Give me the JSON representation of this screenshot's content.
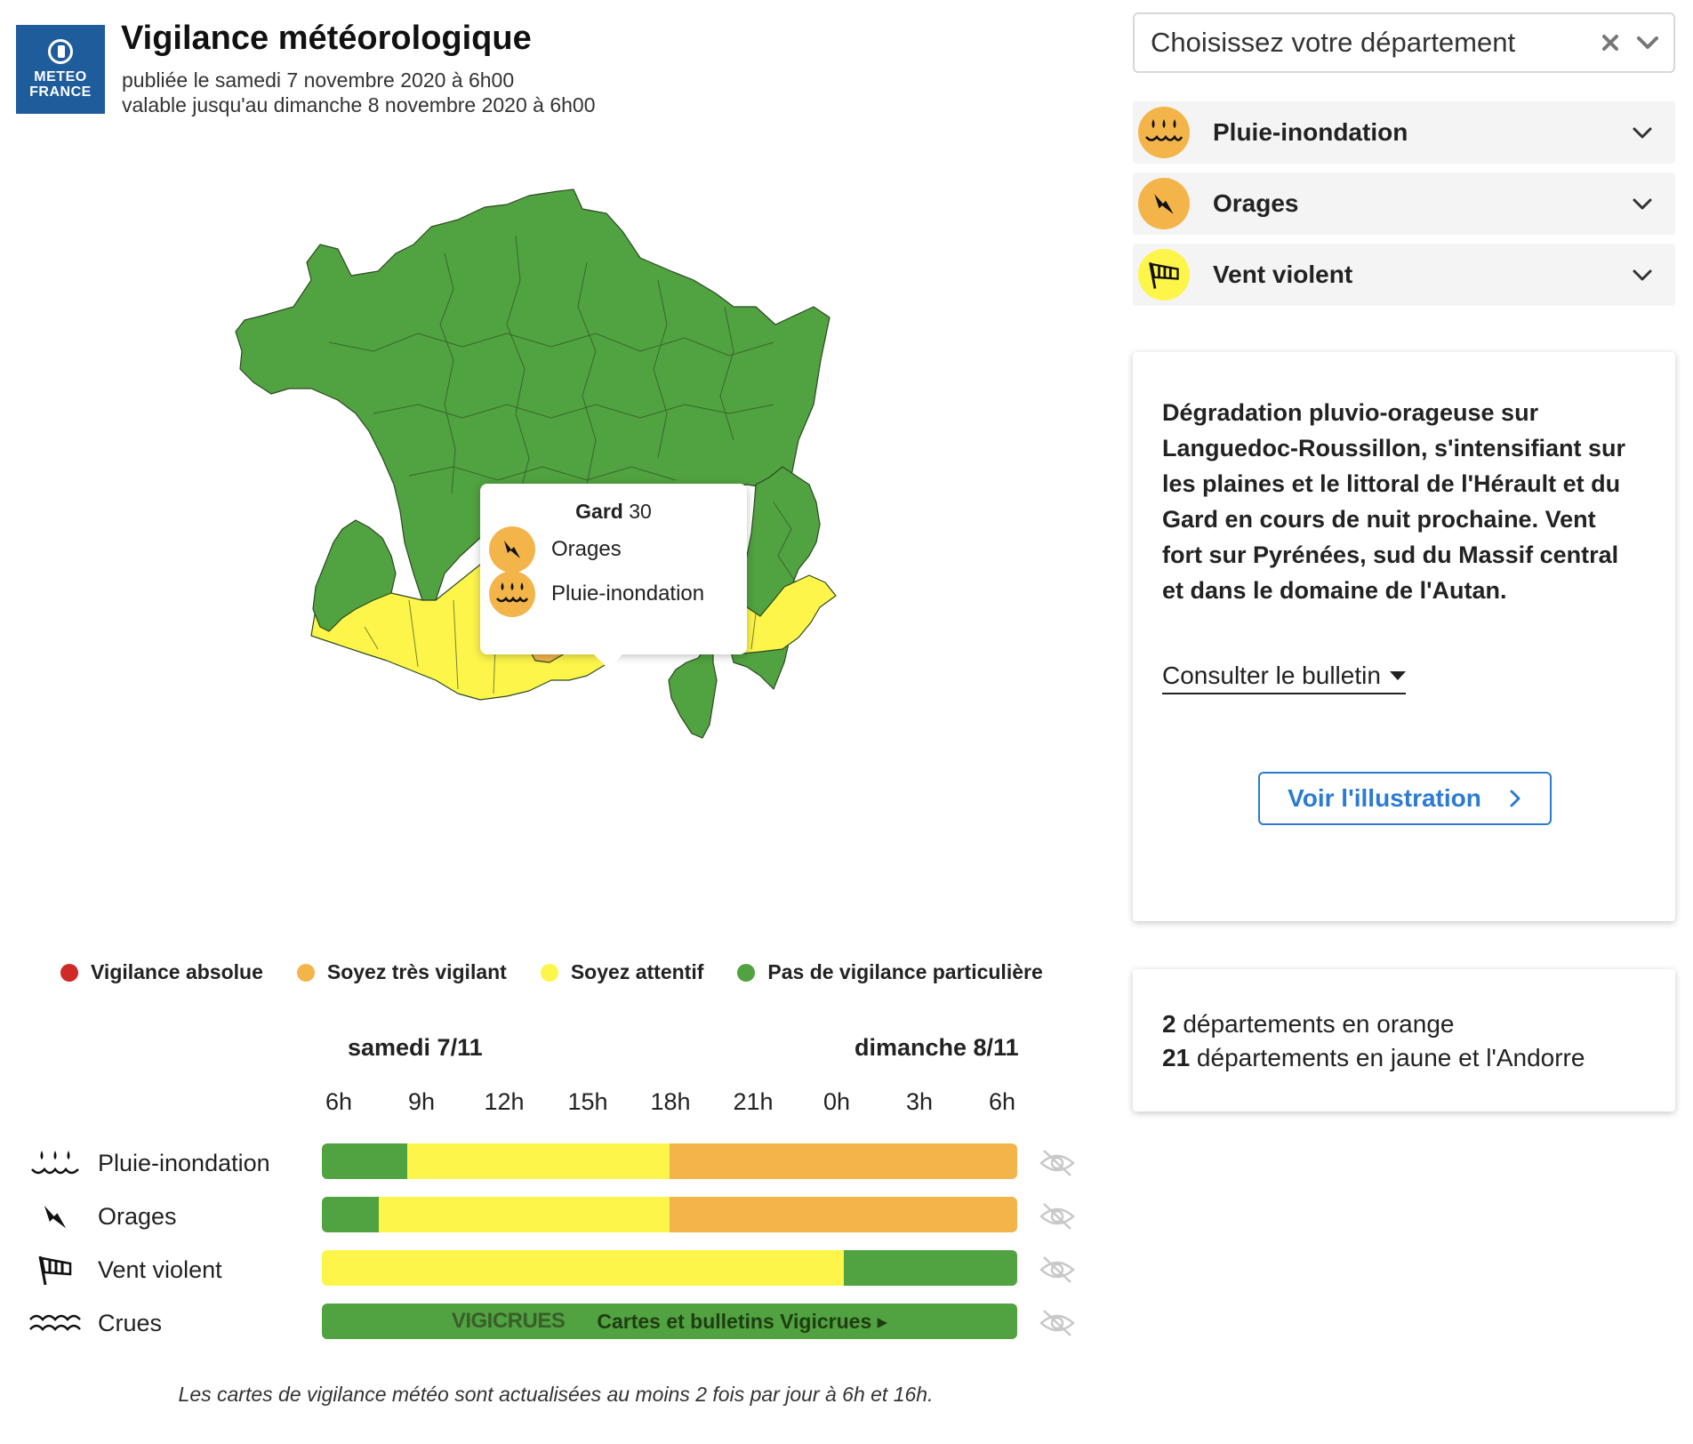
{
  "header": {
    "logo_line1": "METEO",
    "logo_line2": "FRANCE",
    "title": "Vigilance météorologique",
    "published": "publiée le samedi 7 novembre 2020 à 6h00",
    "valid_until": "valable jusqu'au dimanche 8 novembre 2020 à 6h00"
  },
  "tooltip": {
    "dept_name": "Gard",
    "dept_number": "30",
    "risks": [
      "Orages",
      "Pluie-inondation"
    ]
  },
  "legend": [
    {
      "label": "Vigilance absolue",
      "color": "#cf2a27"
    },
    {
      "label": "Soyez très vigilant",
      "color": "#f3b54a"
    },
    {
      "label": "Soyez attentif",
      "color": "#fdf54a"
    },
    {
      "label": "Pas de vigilance particulière",
      "color": "#51a240"
    }
  ],
  "timeline": {
    "day1": "samedi 7/11",
    "day2": "dimanche 8/11",
    "hours": [
      "6h",
      "9h",
      "12h",
      "15h",
      "18h",
      "21h",
      "0h",
      "3h",
      "6h"
    ],
    "rows": [
      {
        "label": "Pluie-inondation",
        "segments": [
          {
            "level": "green",
            "from": 0,
            "to": 0.123
          },
          {
            "level": "yellow",
            "from": 0.123,
            "to": 0.5
          },
          {
            "level": "orange",
            "from": 0.5,
            "to": 1
          }
        ]
      },
      {
        "label": "Orages",
        "segments": [
          {
            "level": "green",
            "from": 0,
            "to": 0.082
          },
          {
            "level": "yellow",
            "from": 0.082,
            "to": 0.5
          },
          {
            "level": "orange",
            "from": 0.5,
            "to": 1
          }
        ]
      },
      {
        "label": "Vent violent",
        "segments": [
          {
            "level": "yellow",
            "from": 0,
            "to": 0.75
          },
          {
            "level": "green",
            "from": 0.75,
            "to": 1
          }
        ]
      },
      {
        "label": "Crues",
        "segments": [
          {
            "level": "green",
            "from": 0,
            "to": 1
          }
        ]
      }
    ],
    "vigicrues_logo": "VIGICRUES",
    "vigicrues_link": "Cartes et bulletins Vigicrues ▸"
  },
  "footnote": "Les cartes de vigilance météo sont actualisées au moins 2 fois par jour à 6h et 16h.",
  "right": {
    "dept_placeholder": "Choisissez votre département",
    "risk_panels": [
      {
        "label": "Pluie-inondation",
        "color": "#f3b54a",
        "icon": "rain-flood-icon"
      },
      {
        "label": "Orages",
        "color": "#f3b54a",
        "icon": "storm-icon"
      },
      {
        "label": "Vent violent",
        "color": "#fdf54a",
        "icon": "wind-icon"
      }
    ],
    "description": "Dégradation pluvio-orageuse sur Languedoc-Roussillon, s'intensifiant sur les plaines et le littoral de l'Hérault et du Gard en cours de nuit prochaine. Vent fort sur Pyrénées, sud du Massif central et dans le domaine de l'Autan.",
    "bulletin_link": "Consulter le bulletin",
    "illustration_button": "Voir l'illustration",
    "count_orange_num": "2",
    "count_orange_text": " départements en orange",
    "count_yellow_num": "21",
    "count_yellow_text": " départements en jaune et l'Andorre"
  }
}
